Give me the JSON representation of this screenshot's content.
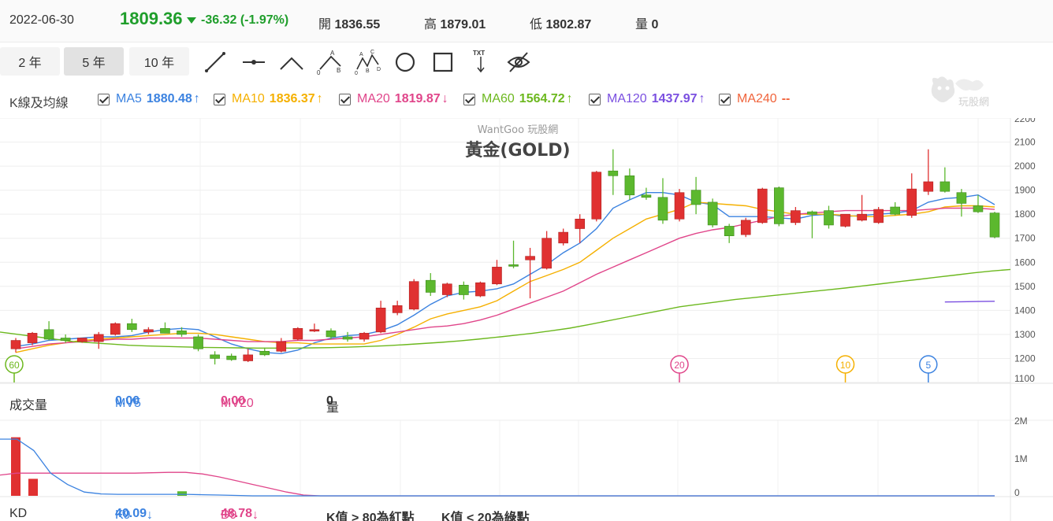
{
  "header": {
    "date": "2022-06-30",
    "price": "1809.36",
    "change": "-36.32 (-1.97%)",
    "open_label": "開",
    "open": "1836.55",
    "high_label": "高",
    "high": "1879.01",
    "low_label": "低",
    "low": "1802.87",
    "vol_label": "量",
    "vol": "0"
  },
  "toolbar": {
    "periods": [
      "2 年",
      "5 年",
      "10 年"
    ],
    "active_period": "5 年",
    "tools": [
      "trend-line-icon",
      "horizontal-line-icon",
      "polyline-icon",
      "abc-pattern-icon",
      "xabcd-pattern-icon",
      "circle-icon",
      "rectangle-icon",
      "text-icon",
      "hide-icon"
    ],
    "txt_label": "TXT"
  },
  "ma_legend": {
    "title": "K線及均線",
    "items": [
      {
        "label": "MA5",
        "value": "1880.48",
        "arrow": "↑",
        "color": "#3b82e0"
      },
      {
        "label": "MA10",
        "value": "1836.37",
        "arrow": "↑",
        "color": "#f5b000"
      },
      {
        "label": "MA20",
        "value": "1819.87",
        "arrow": "↓",
        "color": "#e0458a"
      },
      {
        "label": "MA60",
        "value": "1564.72",
        "arrow": "↑",
        "color": "#6cb81e"
      },
      {
        "label": "MA120",
        "value": "1437.97",
        "arrow": "↑",
        "color": "#7a4fe0"
      },
      {
        "label": "MA240",
        "value": "--",
        "arrow": "",
        "color": "#f0643c"
      }
    ]
  },
  "logo_text": "玩股網",
  "chart_data": {
    "type": "candlestick",
    "watermark": "WantGoo 玩股網",
    "title": "黃金(GOLD)",
    "ylim": [
      1100,
      2200
    ],
    "yticks": [
      1100,
      1200,
      1300,
      1400,
      1500,
      1600,
      1700,
      1800,
      1900,
      2000,
      2100,
      2200
    ],
    "up_color": "#e03131",
    "down_color": "#5cb82e",
    "candles": [
      {
        "o": 1240,
        "h": 1285,
        "l": 1225,
        "c": 1275
      },
      {
        "o": 1265,
        "h": 1310,
        "l": 1255,
        "c": 1305
      },
      {
        "o": 1320,
        "h": 1355,
        "l": 1275,
        "c": 1280
      },
      {
        "o": 1285,
        "h": 1300,
        "l": 1265,
        "c": 1275
      },
      {
        "o": 1270,
        "h": 1285,
        "l": 1265,
        "c": 1285
      },
      {
        "o": 1270,
        "h": 1310,
        "l": 1240,
        "c": 1300
      },
      {
        "o": 1300,
        "h": 1350,
        "l": 1295,
        "c": 1345
      },
      {
        "o": 1345,
        "h": 1365,
        "l": 1310,
        "c": 1320
      },
      {
        "o": 1310,
        "h": 1330,
        "l": 1300,
        "c": 1320
      },
      {
        "o": 1325,
        "h": 1350,
        "l": 1305,
        "c": 1305
      },
      {
        "o": 1315,
        "h": 1330,
        "l": 1290,
        "c": 1300
      },
      {
        "o": 1290,
        "h": 1300,
        "l": 1230,
        "c": 1240
      },
      {
        "o": 1215,
        "h": 1230,
        "l": 1175,
        "c": 1200
      },
      {
        "o": 1210,
        "h": 1220,
        "l": 1190,
        "c": 1195
      },
      {
        "o": 1190,
        "h": 1240,
        "l": 1185,
        "c": 1215
      },
      {
        "o": 1230,
        "h": 1245,
        "l": 1210,
        "c": 1215
      },
      {
        "o": 1230,
        "h": 1285,
        "l": 1225,
        "c": 1270
      },
      {
        "o": 1280,
        "h": 1330,
        "l": 1275,
        "c": 1325
      },
      {
        "o": 1320,
        "h": 1345,
        "l": 1310,
        "c": 1320
      },
      {
        "o": 1315,
        "h": 1325,
        "l": 1280,
        "c": 1290
      },
      {
        "o": 1290,
        "h": 1310,
        "l": 1270,
        "c": 1280
      },
      {
        "o": 1280,
        "h": 1310,
        "l": 1270,
        "c": 1305
      },
      {
        "o": 1310,
        "h": 1440,
        "l": 1305,
        "c": 1410
      },
      {
        "o": 1390,
        "h": 1440,
        "l": 1380,
        "c": 1420
      },
      {
        "o": 1405,
        "h": 1530,
        "l": 1400,
        "c": 1520
      },
      {
        "o": 1525,
        "h": 1555,
        "l": 1460,
        "c": 1475
      },
      {
        "o": 1465,
        "h": 1515,
        "l": 1455,
        "c": 1510
      },
      {
        "o": 1505,
        "h": 1520,
        "l": 1445,
        "c": 1465
      },
      {
        "o": 1460,
        "h": 1520,
        "l": 1455,
        "c": 1515
      },
      {
        "o": 1510,
        "h": 1610,
        "l": 1505,
        "c": 1580
      },
      {
        "o": 1590,
        "h": 1690,
        "l": 1575,
        "c": 1585
      },
      {
        "o": 1610,
        "h": 1660,
        "l": 1450,
        "c": 1625
      },
      {
        "o": 1575,
        "h": 1730,
        "l": 1570,
        "c": 1700
      },
      {
        "o": 1680,
        "h": 1740,
        "l": 1670,
        "c": 1725
      },
      {
        "o": 1740,
        "h": 1800,
        "l": 1680,
        "c": 1780
      },
      {
        "o": 1780,
        "h": 1980,
        "l": 1770,
        "c": 1975
      },
      {
        "o": 1980,
        "h": 2070,
        "l": 1880,
        "c": 1960
      },
      {
        "o": 1960,
        "h": 1990,
        "l": 1860,
        "c": 1880
      },
      {
        "o": 1880,
        "h": 1910,
        "l": 1860,
        "c": 1870
      },
      {
        "o": 1870,
        "h": 1950,
        "l": 1760,
        "c": 1775
      },
      {
        "o": 1780,
        "h": 1905,
        "l": 1770,
        "c": 1890
      },
      {
        "o": 1900,
        "h": 1955,
        "l": 1800,
        "c": 1840
      },
      {
        "o": 1850,
        "h": 1865,
        "l": 1745,
        "c": 1755
      },
      {
        "o": 1750,
        "h": 1760,
        "l": 1680,
        "c": 1710
      },
      {
        "o": 1715,
        "h": 1785,
        "l": 1705,
        "c": 1775
      },
      {
        "o": 1765,
        "h": 1910,
        "l": 1760,
        "c": 1905
      },
      {
        "o": 1910,
        "h": 1915,
        "l": 1750,
        "c": 1760
      },
      {
        "o": 1765,
        "h": 1830,
        "l": 1755,
        "c": 1815
      },
      {
        "o": 1810,
        "h": 1815,
        "l": 1700,
        "c": 1800
      },
      {
        "o": 1815,
        "h": 1835,
        "l": 1740,
        "c": 1755
      },
      {
        "o": 1750,
        "h": 1800,
        "l": 1745,
        "c": 1800
      },
      {
        "o": 1775,
        "h": 1880,
        "l": 1770,
        "c": 1800
      },
      {
        "o": 1765,
        "h": 1830,
        "l": 1760,
        "c": 1820
      },
      {
        "o": 1830,
        "h": 1850,
        "l": 1795,
        "c": 1800
      },
      {
        "o": 1795,
        "h": 1970,
        "l": 1785,
        "c": 1905
      },
      {
        "o": 1895,
        "h": 2070,
        "l": 1880,
        "c": 1935
      },
      {
        "o": 1935,
        "h": 1995,
        "l": 1890,
        "c": 1895
      },
      {
        "o": 1890,
        "h": 1905,
        "l": 1790,
        "c": 1845
      },
      {
        "o": 1835,
        "h": 1880,
        "l": 1805,
        "c": 1810
      },
      {
        "o": 1805,
        "h": 1810,
        "l": 1700,
        "c": 1705
      }
    ],
    "ma_lines": {
      "MA5": {
        "color": "#3b82e0",
        "start": 0,
        "values": [
          1250,
          1260,
          1275,
          1280,
          1285,
          1290,
          1290,
          1295,
          1310,
          1320,
          1325,
          1320,
          1290,
          1260,
          1240,
          1225,
          1220,
          1235,
          1265,
          1285,
          1295,
          1300,
          1315,
          1340,
          1380,
          1425,
          1460,
          1475,
          1480,
          1490,
          1510,
          1550,
          1590,
          1640,
          1680,
          1740,
          1825,
          1860,
          1890,
          1890,
          1880,
          1850,
          1840,
          1790,
          1790,
          1790,
          1785,
          1780,
          1795,
          1800,
          1790,
          1795,
          1800,
          1805,
          1815,
          1850,
          1865,
          1870,
          1880,
          1840
        ]
      },
      "MA10": {
        "color": "#f5b000",
        "start": 0,
        "values": [
          1225,
          1240,
          1255,
          1265,
          1275,
          1280,
          1285,
          1290,
          1295,
          1300,
          1305,
          1305,
          1300,
          1290,
          1280,
          1270,
          1265,
          1265,
          1260,
          1260,
          1260,
          1260,
          1275,
          1300,
          1330,
          1365,
          1385,
          1400,
          1415,
          1440,
          1480,
          1520,
          1545,
          1570,
          1600,
          1650,
          1700,
          1740,
          1780,
          1800,
          1820,
          1850,
          1845,
          1840,
          1835,
          1820,
          1810,
          1800,
          1800,
          1800,
          1795,
          1790,
          1790,
          1795,
          1800,
          1810,
          1830,
          1835,
          1835,
          1830
        ]
      },
      "MA20": {
        "color": "#e0458a",
        "start": 0,
        "values": [
          1240,
          1250,
          1260,
          1265,
          1270,
          1275,
          1280,
          1280,
          1285,
          1285,
          1285,
          1285,
          1280,
          1275,
          1270,
          1270,
          1270,
          1275,
          1275,
          1280,
          1285,
          1290,
          1300,
          1310,
          1320,
          1330,
          1335,
          1345,
          1360,
          1380,
          1405,
          1430,
          1455,
          1480,
          1515,
          1550,
          1580,
          1610,
          1640,
          1670,
          1700,
          1720,
          1735,
          1745,
          1760,
          1775,
          1790,
          1800,
          1805,
          1810,
          1815,
          1815,
          1815,
          1815,
          1815,
          1820,
          1825,
          1825,
          1825,
          1820
        ]
      },
      "MA60": {
        "color": "#6cb81e",
        "start": 0,
        "values": [
          1310,
          1300,
          1290,
          1280,
          1270,
          1265,
          1260,
          1255,
          1252,
          1250,
          1248,
          1246,
          1245,
          1244,
          1243,
          1243,
          1243,
          1244,
          1245,
          1247,
          1250,
          1253,
          1257,
          1262,
          1267,
          1273,
          1280,
          1288,
          1296,
          1305,
          1315,
          1326,
          1340,
          1355,
          1370,
          1385,
          1400,
          1415,
          1425,
          1435,
          1445,
          1453,
          1461,
          1469,
          1477,
          1485,
          1493,
          1502,
          1511,
          1520,
          1529,
          1538,
          1547,
          1556,
          1564,
          1570
        ]
      },
      "MA120": {
        "color": "#7a4fe0",
        "start": 56,
        "values": [
          1435,
          1436,
          1437,
          1438
        ]
      }
    },
    "markers": [
      {
        "label": "60",
        "color": "#6cb81e",
        "candle": 0
      },
      {
        "label": "20",
        "color": "#e0458a",
        "candle": 40
      },
      {
        "label": "10",
        "color": "#f5b000",
        "candle": 50
      },
      {
        "label": "5",
        "color": "#3b82e0",
        "candle": 55
      }
    ],
    "volume": {
      "title": "成交量",
      "mv5_label": "MV5",
      "mv5": "0.00",
      "mv20_label": "MV20",
      "mv20": "0.00",
      "vol_label": "量",
      "vol": "0",
      "ylim": [
        0,
        2000000
      ],
      "yticks_labels": [
        "2M",
        "1M",
        "0"
      ],
      "bars": [
        {
          "candle": 0,
          "v": 1550000,
          "color": "#e03131"
        },
        {
          "candle": 1,
          "v": 450000,
          "color": "#e03131"
        },
        {
          "candle": 10,
          "v": 120000,
          "color": "#5cb82e"
        }
      ],
      "mv5_line": [
        1500000,
        1500000,
        1200000,
        600000,
        300000,
        100000,
        50000,
        40000,
        40000,
        40000,
        40000,
        40000,
        30000,
        20000,
        10000,
        0,
        0,
        0,
        0,
        0,
        0,
        0,
        0,
        0,
        0,
        0,
        0,
        0,
        0,
        0,
        0,
        0,
        0,
        0,
        0,
        0,
        0,
        0,
        0,
        0,
        0,
        0,
        0,
        0,
        0,
        0,
        0,
        0,
        0,
        0,
        0,
        0,
        0,
        0,
        0,
        0,
        0,
        0,
        0,
        0
      ],
      "mv20_line": [
        550000,
        600000,
        600000,
        600000,
        600000,
        600000,
        600000,
        600000,
        600000,
        610000,
        620000,
        620000,
        580000,
        500000,
        400000,
        300000,
        200000,
        100000,
        20000,
        0,
        0,
        0,
        0,
        0,
        0,
        0,
        0,
        0,
        0,
        0,
        0,
        0,
        0,
        0,
        0,
        0,
        0,
        0,
        0,
        0,
        0,
        0,
        0,
        0,
        0,
        0,
        0,
        0,
        0,
        0,
        0,
        0,
        0,
        0,
        0,
        0,
        0,
        0,
        0,
        0
      ]
    }
  },
  "kd": {
    "title": "KD",
    "k_label": "K9",
    "k": "40.09",
    "k_arrow": "↓",
    "d_label": "D9",
    "d": "48.78",
    "d_arrow": "↓",
    "note1": "K值 > 80為紅點",
    "note2": "K值 < 20為綠點"
  }
}
